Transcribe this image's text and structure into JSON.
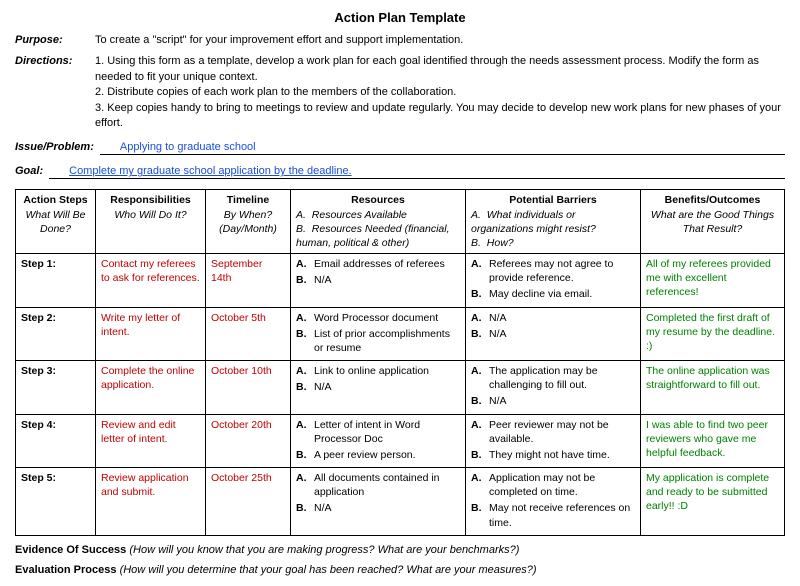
{
  "title": "Action Plan Template",
  "purpose_label": "Purpose:",
  "purpose": "To create a \"script\" for your improvement effort and support implementation.",
  "directions_label": "Directions:",
  "directions": [
    "1.  Using this form as a template, develop a work plan for each goal identified through the needs assessment process. Modify the form as needed to fit your unique context.",
    "2.  Distribute copies of each work plan to the members of the collaboration.",
    "3.  Keep copies handy to bring to meetings to review and update regularly.  You may decide to develop new work plans for new phases of your effort."
  ],
  "issue_label": "Issue/Problem:",
  "issue_value": "Applying to graduate school",
  "goal_label": "Goal:",
  "goal_value": "Complete my graduate school application by the deadline.",
  "headers": {
    "steps_title": "Action Steps",
    "steps_sub": "What Will Be Done?",
    "resp_title": "Responsibilities",
    "resp_sub": "Who Will Do It?",
    "time_title": "Timeline",
    "time_sub": "By When? (Day/Month)",
    "res_title": "Resources",
    "res_a": "Resources Available",
    "res_b": "Resources Needed (financial, human, political & other)",
    "barr_title": "Potential Barriers",
    "barr_a": "What individuals or organizations might resist?",
    "barr_b": "How?",
    "ben_title": "Benefits/Outcomes",
    "ben_sub": "What are the Good Things That Result?"
  },
  "rows": [
    {
      "step": "Step 1:",
      "resp": "Contact my referees to ask for references.",
      "time": "September 14th",
      "res_a": "Email addresses of referees",
      "res_b": "N/A",
      "barr_a": "Referees may not agree to provide reference.",
      "barr_b": "May decline via email.",
      "ben": "All of my referees provided me with excellent references!"
    },
    {
      "step": "Step 2:",
      "resp": "Write my letter of intent.",
      "time": "October 5th",
      "res_a": "Word Processor document",
      "res_b": "List of prior accomplishments or resume",
      "barr_a": "N/A",
      "barr_b": "N/A",
      "ben": "Completed the first draft of my resume by the deadline. :)"
    },
    {
      "step": "Step 3:",
      "resp": "Complete the online application.",
      "time": "October 10th",
      "res_a": "Link to online application",
      "res_b": "N/A",
      "barr_a": "The application may be challenging to fill out.",
      "barr_b": "N/A",
      "ben": "The online application was straightforward to fill out."
    },
    {
      "step": "Step 4:",
      "resp": "Review and edit letter of intent.",
      "time": "October 20th",
      "res_a": "Letter of intent in Word Processor Doc",
      "res_b": "A peer review person.",
      "barr_a": "Peer reviewer may not be available.",
      "barr_b": "They might not have time.",
      "ben": "I was able to find two peer reviewers who gave me helpful feedback."
    },
    {
      "step": "Step 5:",
      "resp": "Review application and submit.",
      "time": "October 25th",
      "res_a": "All documents contained in application",
      "res_b": "N/A",
      "barr_a": "Application may not be completed on time.",
      "barr_b": "May not receive references on time.",
      "ben": "My application is complete and ready to be submitted early!! :D"
    }
  ],
  "footer1_label": "Evidence Of Success",
  "footer1_text": "(How will you know that you are making progress? What are your benchmarks?)",
  "footer2_label": "Evaluation Process",
  "footer2_text": "(How will you determine that your goal has been reached? What are your measures?)",
  "colors": {
    "link_blue": "#1a4fd8",
    "red": "#c00000",
    "green": "#008000"
  }
}
